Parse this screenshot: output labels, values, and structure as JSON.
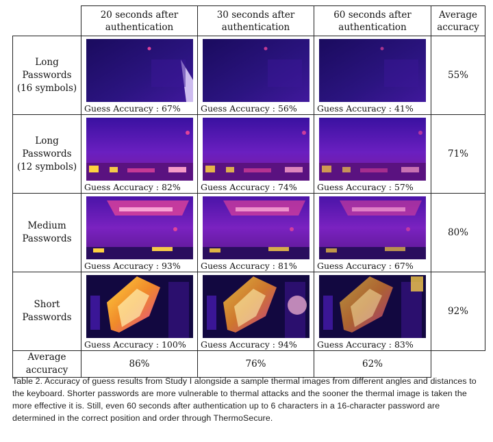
{
  "table": {
    "column_headers": [
      "20 seconds after\nauthentication",
      "30 seconds after\nauthentication",
      "60 seconds after\nauthentication",
      "Average\naccuracy"
    ],
    "rows": [
      {
        "label": "Long\nPasswords\n(16 symbols)",
        "guesses": [
          "Guess Accuracy : 67%",
          "Guess Accuracy : 56%",
          "Guess Accuracy : 41%"
        ],
        "average": "55%",
        "image_style": "long16"
      },
      {
        "label": "Long\nPasswords\n(12 symbols)",
        "guesses": [
          "Guess Accuracy : 82%",
          "Guess Accuracy : 74%",
          "Guess Accuracy : 57%"
        ],
        "average": "71%",
        "image_style": "long12"
      },
      {
        "label": "Medium\nPasswords",
        "guesses": [
          "Guess Accuracy : 93%",
          "Guess Accuracy : 81%",
          "Guess Accuracy : 67%"
        ],
        "average": "80%",
        "image_style": "medium"
      },
      {
        "label": "Short\nPasswords",
        "guesses": [
          "Guess Accuracy : 100%",
          "Guess Accuracy : 94%",
          "Guess Accuracy : 83%"
        ],
        "average": "92%",
        "image_style": "short"
      }
    ],
    "average_row": {
      "label": "Average\naccuracy",
      "values": [
        "86%",
        "76%",
        "62%"
      ]
    }
  },
  "caption": "Table 2.  Accuracy of guess results from Study I alongside a sample thermal images from different angles and distances to the keyboard. Shorter passwords are more vulnerable to thermal attacks and the sooner the thermal image is taken the more effective it is. Still, even 60 seconds after authentication up to 6 characters in a 16-character password are determined in the correct position and order through ThermoSecure.",
  "colors": {
    "thermal_dark": "#1a0b5e",
    "thermal_mid": "#6b1fb3",
    "thermal_hot": "#e0439a",
    "thermal_peak": "#ffd23f"
  }
}
